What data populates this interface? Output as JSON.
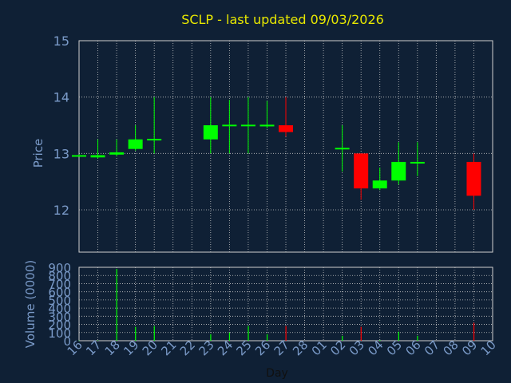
{
  "colors": {
    "background": "#0f2035",
    "title": "#e8e800",
    "axis_label": "#7a9ac8",
    "tick_label": "#7a9ac8",
    "frame": "#d0d0d0",
    "grid": "#c8c8c8",
    "up": "#00ff00",
    "down": "#ff0000",
    "day_label": "#101010"
  },
  "chart_data": [
    {
      "type": "candlestick",
      "title": "SCLP - last updated 09/03/2026",
      "ylabel": "Price",
      "ylim": [
        11.25,
        15
      ],
      "yticks": [
        12,
        13,
        14,
        15
      ],
      "grid": true,
      "categories": [
        "16",
        "17",
        "18",
        "19",
        "20",
        "21",
        "22",
        "23",
        "24",
        "25",
        "26",
        "27",
        "28",
        "01",
        "02",
        "03",
        "04",
        "05",
        "06",
        "07",
        "08",
        "09",
        "10"
      ],
      "candles": [
        {
          "x": "16",
          "open": 12.96,
          "high": 12.98,
          "low": 12.95,
          "close": 12.97
        },
        {
          "x": "17",
          "open": 12.93,
          "high": 13.25,
          "low": 12.91,
          "close": 12.97
        },
        {
          "x": "18",
          "open": 12.98,
          "high": 13.25,
          "low": 12.95,
          "close": 13.02
        },
        {
          "x": "19",
          "open": 13.08,
          "high": 13.5,
          "low": 13.05,
          "close": 13.25
        },
        {
          "x": "20",
          "open": 13.24,
          "high": 14.0,
          "low": 13.0,
          "close": 13.26
        },
        {
          "x": "23",
          "open": 13.25,
          "high": 14.0,
          "low": 13.0,
          "close": 13.5
        },
        {
          "x": "24",
          "open": 13.49,
          "high": 13.95,
          "low": 13.0,
          "close": 13.51
        },
        {
          "x": "25",
          "open": 13.49,
          "high": 14.0,
          "low": 13.0,
          "close": 13.51
        },
        {
          "x": "26",
          "open": 13.48,
          "high": 13.93,
          "low": 13.45,
          "close": 13.51
        },
        {
          "x": "27",
          "open": 13.5,
          "high": 14.0,
          "low": 13.3,
          "close": 13.38
        },
        {
          "x": "02",
          "open": 13.09,
          "high": 13.5,
          "low": 12.68,
          "close": 13.1
        },
        {
          "x": "03",
          "open": 13.0,
          "high": 13.0,
          "low": 12.18,
          "close": 12.38
        },
        {
          "x": "04",
          "open": 12.38,
          "high": 12.75,
          "low": 12.35,
          "close": 12.52
        },
        {
          "x": "05",
          "open": 12.52,
          "high": 13.2,
          "low": 12.45,
          "close": 12.85
        },
        {
          "x": "06",
          "open": 12.83,
          "high": 13.2,
          "low": 12.6,
          "close": 12.85
        },
        {
          "x": "09",
          "open": 12.85,
          "high": 13.0,
          "low": 12.0,
          "close": 12.25
        }
      ]
    },
    {
      "type": "bar",
      "ylabel": "Volume (0000)",
      "xlabel": "Day",
      "ylim": [
        0,
        900
      ],
      "yticks": [
        0,
        100,
        200,
        300,
        400,
        500,
        600,
        700,
        800,
        900
      ],
      "ytick_labels": [
        "0",
        "100",
        "200",
        "300",
        "400",
        "500",
        "600",
        "700",
        "800",
        "900"
      ],
      "grid": true,
      "categories": [
        "16",
        "17",
        "18",
        "19",
        "20",
        "21",
        "22",
        "23",
        "24",
        "25",
        "26",
        "27",
        "28",
        "01",
        "02",
        "03",
        "04",
        "05",
        "06",
        "07",
        "08",
        "09",
        "10"
      ],
      "bars": [
        {
          "x": "16",
          "value": 3,
          "direction": "up"
        },
        {
          "x": "17",
          "value": 5,
          "direction": "up"
        },
        {
          "x": "18",
          "value": 880,
          "direction": "up"
        },
        {
          "x": "19",
          "value": 170,
          "direction": "up"
        },
        {
          "x": "20",
          "value": 180,
          "direction": "up"
        },
        {
          "x": "23",
          "value": 80,
          "direction": "up"
        },
        {
          "x": "24",
          "value": 100,
          "direction": "up"
        },
        {
          "x": "25",
          "value": 180,
          "direction": "up"
        },
        {
          "x": "26",
          "value": 80,
          "direction": "up"
        },
        {
          "x": "27",
          "value": 180,
          "direction": "down"
        },
        {
          "x": "02",
          "value": 60,
          "direction": "up"
        },
        {
          "x": "03",
          "value": 170,
          "direction": "down"
        },
        {
          "x": "04",
          "value": 10,
          "direction": "up"
        },
        {
          "x": "05",
          "value": 110,
          "direction": "up"
        },
        {
          "x": "06",
          "value": 60,
          "direction": "up"
        },
        {
          "x": "09",
          "value": 220,
          "direction": "down"
        }
      ]
    }
  ]
}
